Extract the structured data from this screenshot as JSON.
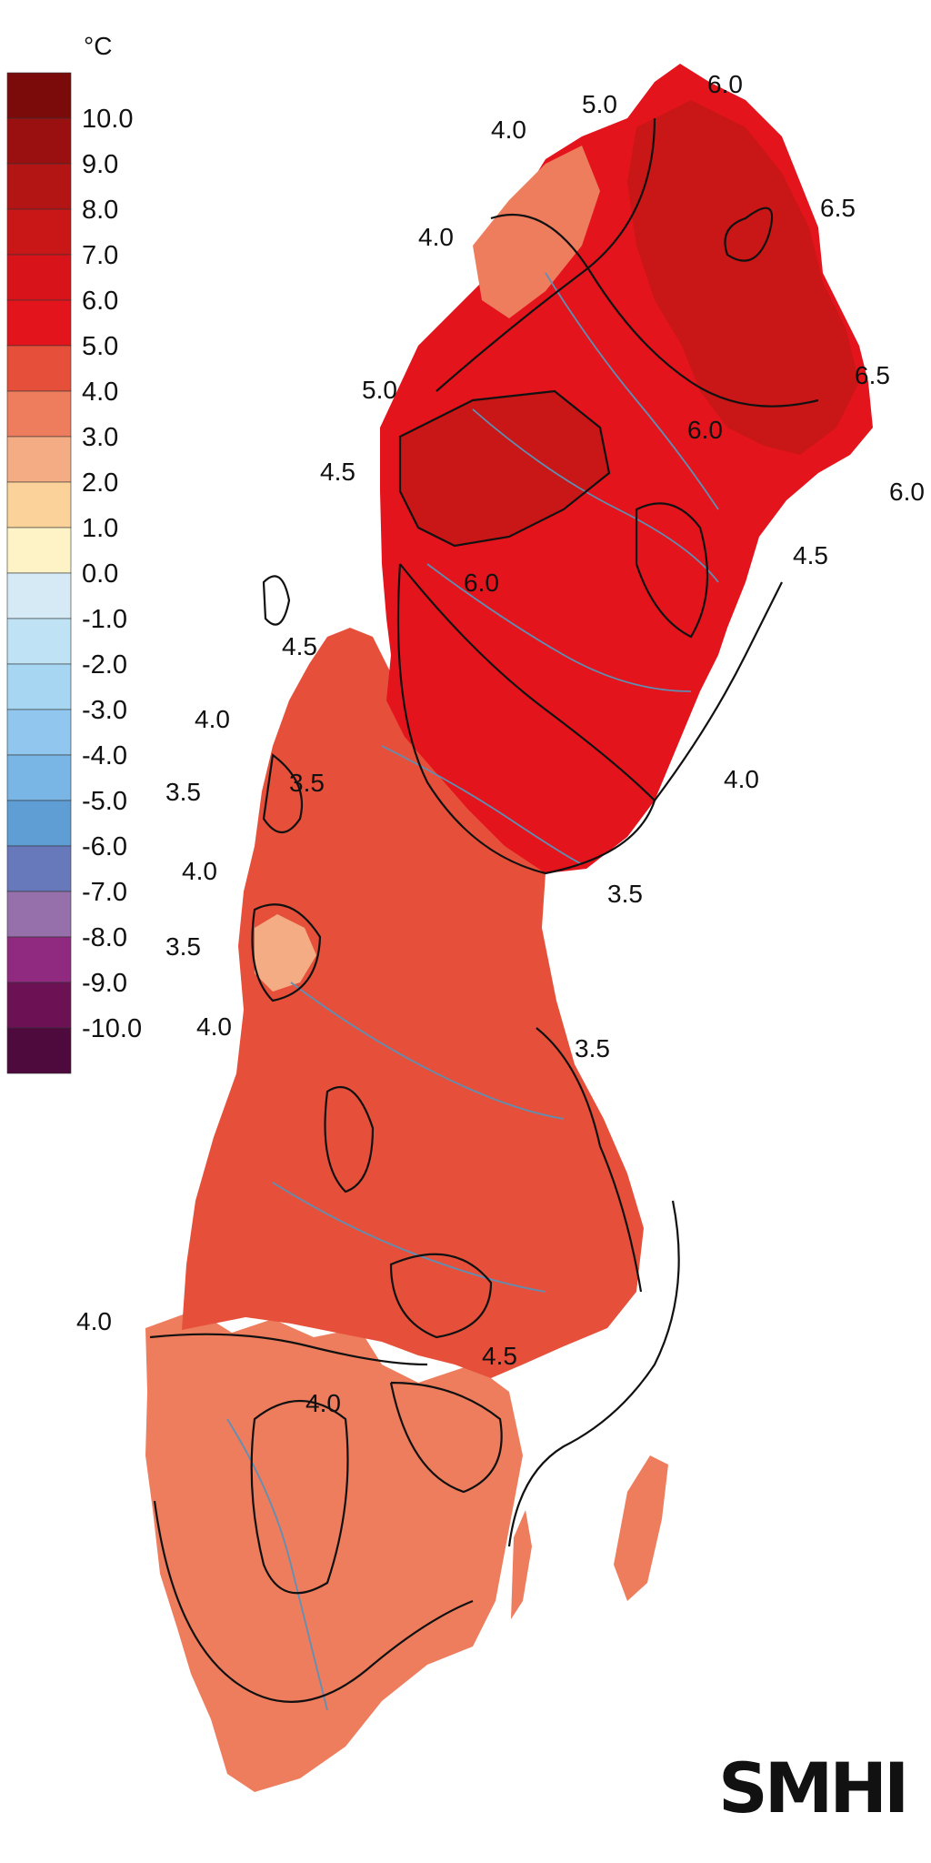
{
  "legend": {
    "unit": "°C",
    "classes": [
      {
        "label": "10.0",
        "color": "#7b0a0a"
      },
      {
        "label": "9.0",
        "color": "#9a1010"
      },
      {
        "label": "8.0",
        "color": "#b31414"
      },
      {
        "label": "7.0",
        "color": "#c91616"
      },
      {
        "label": "6.0",
        "color": "#d8141a"
      },
      {
        "label": "5.0",
        "color": "#e4141c"
      },
      {
        "label": "4.0",
        "color": "#e6503a"
      },
      {
        "label": "3.0",
        "color": "#ee7d5e"
      },
      {
        "label": "2.0",
        "color": "#f4ac84"
      },
      {
        "label": "1.0",
        "color": "#fbd39a"
      },
      {
        "label": "0.0",
        "color": "#fdf3c6"
      },
      {
        "label": "-1.0",
        "color": "#d6eaf6"
      },
      {
        "label": "-2.0",
        "color": "#bfe2f4"
      },
      {
        "label": "-3.0",
        "color": "#a6d6f1"
      },
      {
        "label": "-4.0",
        "color": "#91c7ee"
      },
      {
        "label": "-5.0",
        "color": "#79b6e6"
      },
      {
        "label": "-6.0",
        "color": "#5f9dd5"
      },
      {
        "label": "-7.0",
        "color": "#6778bb"
      },
      {
        "label": "-8.0",
        "color": "#9670aa"
      },
      {
        "label": "-9.0",
        "color": "#902a80"
      },
      {
        "label": "-10.0",
        "color": "#6c1254"
      },
      {
        "label": "",
        "color": "#4e0a3c"
      }
    ]
  },
  "contour_labels": [
    "6.0",
    "5.0",
    "4.0",
    "6.5",
    "4.0",
    "6.5",
    "5.0",
    "6.0",
    "4.5",
    "6.0",
    "6.0",
    "4.5",
    "4.5",
    "4.0",
    "4.0",
    "3.5",
    "3.5",
    "4.0",
    "3.5",
    "3.5",
    "4.0",
    "3.5",
    "4.0",
    "4.5",
    "4.0"
  ],
  "logo": "SMHI",
  "colors": {
    "north_fill": "#e4141c",
    "far_north_fill": "#c91616",
    "mid_fill": "#e6503a",
    "south_fill": "#ee7d5e",
    "light_patch_fill": "#f4ac84",
    "river": "#5e8fb4"
  }
}
